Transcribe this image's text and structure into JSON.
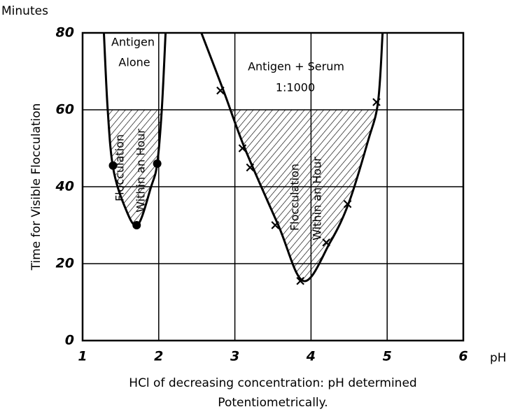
{
  "chart_data": {
    "type": "line",
    "y_unit_label": "Minutes",
    "x_unit_label": "pH",
    "ylabel": "Time for Visible Flocculation",
    "xlabel": [
      "HCl of decreasing concentration: pH determined",
      "Potentiometrically."
    ],
    "annotations": [
      "Antigen",
      "Alone",
      "Antigen + Serum",
      "1:1000",
      "Flocculation",
      "Within an Hour",
      "Flocculation",
      "Within an Hour"
    ],
    "xlim": [
      1,
      6
    ],
    "xticks": [
      1,
      2,
      3,
      4,
      5,
      6
    ],
    "ylim": [
      0,
      80
    ],
    "yticks": [
      0,
      20,
      40,
      60,
      80
    ],
    "grid": true,
    "threshold": 60,
    "series": [
      {
        "style": "line",
        "color": "#000000",
        "x": [
          1.28,
          1.33,
          1.4,
          1.55,
          1.72,
          1.9,
          1.98,
          2.04,
          2.09
        ],
        "values": [
          80,
          60,
          45,
          35,
          30,
          40,
          46,
          60,
          80
        ]
      },
      {
        "style": "line",
        "color": "#000000",
        "x": [
          2.56,
          2.85,
          3.13,
          3.57,
          3.9,
          4.25,
          4.5,
          4.75,
          4.88,
          4.94
        ],
        "values": [
          80,
          65,
          50,
          30,
          15.5,
          25.5,
          36,
          52,
          62,
          80
        ]
      },
      {
        "style": "dot",
        "color": "#000000",
        "x": [
          1.4,
          1.71,
          1.98
        ],
        "values": [
          45.5,
          30,
          46
        ]
      },
      {
        "style": "cross",
        "color": "#000000",
        "x": [
          2.81,
          3.1,
          3.2,
          3.53,
          3.86,
          4.2,
          4.48,
          4.86
        ],
        "values": [
          65,
          50,
          45,
          30,
          15.5,
          25.5,
          35.5,
          62
        ]
      }
    ]
  }
}
